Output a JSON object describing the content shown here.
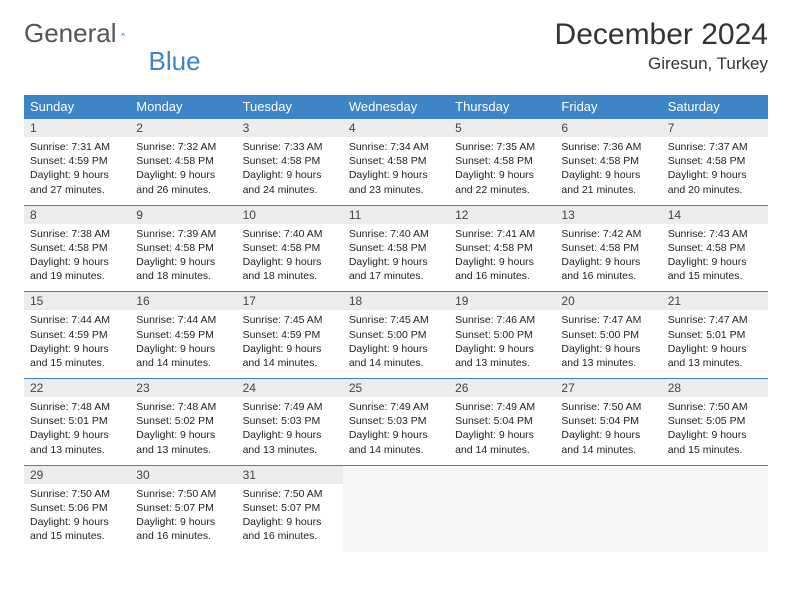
{
  "logo": {
    "word1": "General",
    "word2": "Blue"
  },
  "title": "December 2024",
  "location": "Giresun, Turkey",
  "weekdays": [
    "Sunday",
    "Monday",
    "Tuesday",
    "Wednesday",
    "Thursday",
    "Friday",
    "Saturday"
  ],
  "colors": {
    "header_bg": "#3d85c6",
    "header_fg": "#ffffff",
    "daynum_bg": "#ececec",
    "row_border": "#3d85c6",
    "text": "#222222"
  },
  "weeks": [
    [
      {
        "n": "1",
        "sr": "7:31 AM",
        "ss": "4:59 PM",
        "dl": "9 hours and 27 minutes."
      },
      {
        "n": "2",
        "sr": "7:32 AM",
        "ss": "4:58 PM",
        "dl": "9 hours and 26 minutes."
      },
      {
        "n": "3",
        "sr": "7:33 AM",
        "ss": "4:58 PM",
        "dl": "9 hours and 24 minutes."
      },
      {
        "n": "4",
        "sr": "7:34 AM",
        "ss": "4:58 PM",
        "dl": "9 hours and 23 minutes."
      },
      {
        "n": "5",
        "sr": "7:35 AM",
        "ss": "4:58 PM",
        "dl": "9 hours and 22 minutes."
      },
      {
        "n": "6",
        "sr": "7:36 AM",
        "ss": "4:58 PM",
        "dl": "9 hours and 21 minutes."
      },
      {
        "n": "7",
        "sr": "7:37 AM",
        "ss": "4:58 PM",
        "dl": "9 hours and 20 minutes."
      }
    ],
    [
      {
        "n": "8",
        "sr": "7:38 AM",
        "ss": "4:58 PM",
        "dl": "9 hours and 19 minutes."
      },
      {
        "n": "9",
        "sr": "7:39 AM",
        "ss": "4:58 PM",
        "dl": "9 hours and 18 minutes."
      },
      {
        "n": "10",
        "sr": "7:40 AM",
        "ss": "4:58 PM",
        "dl": "9 hours and 18 minutes."
      },
      {
        "n": "11",
        "sr": "7:40 AM",
        "ss": "4:58 PM",
        "dl": "9 hours and 17 minutes."
      },
      {
        "n": "12",
        "sr": "7:41 AM",
        "ss": "4:58 PM",
        "dl": "9 hours and 16 minutes."
      },
      {
        "n": "13",
        "sr": "7:42 AM",
        "ss": "4:58 PM",
        "dl": "9 hours and 16 minutes."
      },
      {
        "n": "14",
        "sr": "7:43 AM",
        "ss": "4:58 PM",
        "dl": "9 hours and 15 minutes."
      }
    ],
    [
      {
        "n": "15",
        "sr": "7:44 AM",
        "ss": "4:59 PM",
        "dl": "9 hours and 15 minutes."
      },
      {
        "n": "16",
        "sr": "7:44 AM",
        "ss": "4:59 PM",
        "dl": "9 hours and 14 minutes."
      },
      {
        "n": "17",
        "sr": "7:45 AM",
        "ss": "4:59 PM",
        "dl": "9 hours and 14 minutes."
      },
      {
        "n": "18",
        "sr": "7:45 AM",
        "ss": "5:00 PM",
        "dl": "9 hours and 14 minutes."
      },
      {
        "n": "19",
        "sr": "7:46 AM",
        "ss": "5:00 PM",
        "dl": "9 hours and 13 minutes."
      },
      {
        "n": "20",
        "sr": "7:47 AM",
        "ss": "5:00 PM",
        "dl": "9 hours and 13 minutes."
      },
      {
        "n": "21",
        "sr": "7:47 AM",
        "ss": "5:01 PM",
        "dl": "9 hours and 13 minutes."
      }
    ],
    [
      {
        "n": "22",
        "sr": "7:48 AM",
        "ss": "5:01 PM",
        "dl": "9 hours and 13 minutes."
      },
      {
        "n": "23",
        "sr": "7:48 AM",
        "ss": "5:02 PM",
        "dl": "9 hours and 13 minutes."
      },
      {
        "n": "24",
        "sr": "7:49 AM",
        "ss": "5:03 PM",
        "dl": "9 hours and 13 minutes."
      },
      {
        "n": "25",
        "sr": "7:49 AM",
        "ss": "5:03 PM",
        "dl": "9 hours and 14 minutes."
      },
      {
        "n": "26",
        "sr": "7:49 AM",
        "ss": "5:04 PM",
        "dl": "9 hours and 14 minutes."
      },
      {
        "n": "27",
        "sr": "7:50 AM",
        "ss": "5:04 PM",
        "dl": "9 hours and 14 minutes."
      },
      {
        "n": "28",
        "sr": "7:50 AM",
        "ss": "5:05 PM",
        "dl": "9 hours and 15 minutes."
      }
    ],
    [
      {
        "n": "29",
        "sr": "7:50 AM",
        "ss": "5:06 PM",
        "dl": "9 hours and 15 minutes."
      },
      {
        "n": "30",
        "sr": "7:50 AM",
        "ss": "5:07 PM",
        "dl": "9 hours and 16 minutes."
      },
      {
        "n": "31",
        "sr": "7:50 AM",
        "ss": "5:07 PM",
        "dl": "9 hours and 16 minutes."
      },
      null,
      null,
      null,
      null
    ]
  ],
  "labels": {
    "sunrise": "Sunrise:",
    "sunset": "Sunset:",
    "daylight": "Daylight:"
  }
}
